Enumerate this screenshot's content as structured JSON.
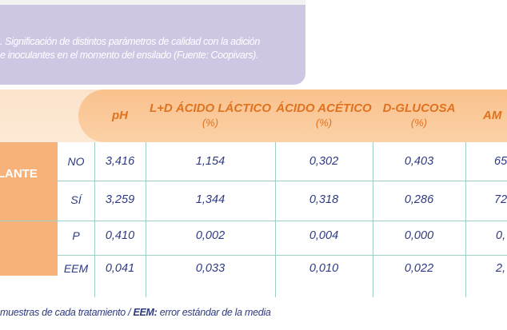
{
  "caption": {
    "line1": ". Significación de distintos parámetros de calidad con la adición",
    "line2": "e inoculantes en el momento del ensilado (Fuente: Coopivars)."
  },
  "table": {
    "columns": [
      {
        "name": "pH",
        "unit": ""
      },
      {
        "name": "L+D ÁCIDO LÁCTICO",
        "unit": "(%)"
      },
      {
        "name": "ÁCIDO ACÉTICO",
        "unit": "(%)"
      },
      {
        "name": "D-GLUCOSA",
        "unit": "(%)"
      },
      {
        "name": "AM",
        "unit": ""
      }
    ],
    "group_label": "ULANTE",
    "rows": [
      {
        "label": "NO",
        "values": [
          "3,416",
          "1,154",
          "0,302",
          "0,403",
          "65"
        ]
      },
      {
        "label": "SÍ",
        "values": [
          "3,259",
          "1,344",
          "0,318",
          "0,286",
          "72"
        ]
      },
      {
        "label": "P",
        "values": [
          "0,410",
          "0,002",
          "0,004",
          "0,000",
          "0,"
        ]
      },
      {
        "label": "EEM",
        "values": [
          "0,041",
          "0,033",
          "0,010",
          "0,022",
          "2,"
        ]
      }
    ]
  },
  "footnote": {
    "part1": " muestras de cada tratamiento  /  ",
    "bold": "EEM:",
    "part2": " error estándar de la media"
  },
  "colors": {
    "header_orange": "#e0721f",
    "header_fill": "#f9c18c",
    "caption_bg": "#cec6e3",
    "text_blue": "#2e3a80",
    "grid_teal": "#9bcfc4"
  }
}
